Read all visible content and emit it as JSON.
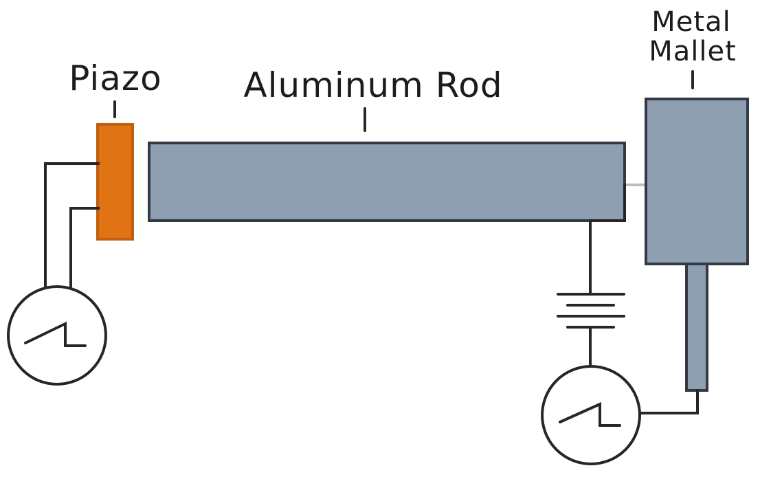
{
  "labels": {
    "piezo": "Piazo",
    "rod": "Aluminum Rod",
    "mallet_line1": "Metal",
    "mallet_line2": "Mallet"
  },
  "colors": {
    "piezo_fill": "#e07314",
    "piezo_stroke": "#c0600f",
    "rod_fill": "#8e9fb1",
    "mallet_fill": "#8e9fb1",
    "wire": "#262626",
    "contact_gap": "#bdbdbd"
  },
  "icons": {
    "left_meter": "sawtooth-gauge-icon",
    "right_meter": "sawtooth-gauge-icon",
    "battery": "battery-icon"
  }
}
